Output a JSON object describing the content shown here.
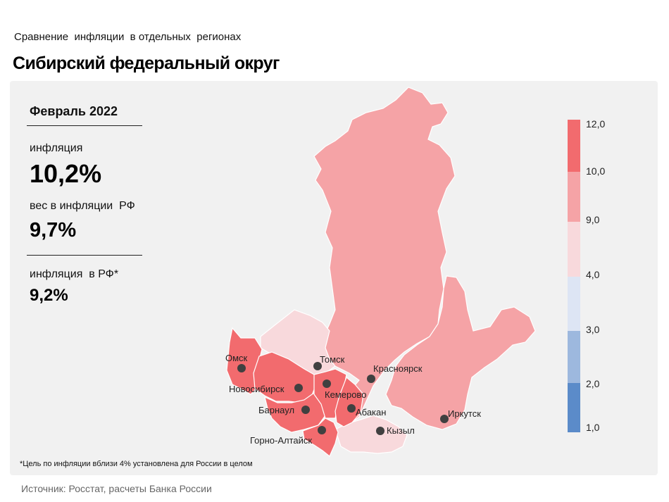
{
  "header": {
    "subtitle": "Сравнение  инфляции  в отдельных  регионах",
    "title": "Сибирский федеральный округ"
  },
  "stats": {
    "period": "Февраль 2022",
    "inflation_label": "инфляция",
    "inflation_value": "10,2%",
    "weight_label": "вес в инфляции  РФ",
    "weight_value": "9,7%",
    "rf_label": "инфляция  в РФ*",
    "rf_value": "9,2%"
  },
  "legend": {
    "labels": [
      "12,0",
      "10,0",
      "9,0",
      "4,0",
      "3,0",
      "2,0",
      "1,0"
    ],
    "colors": [
      "#f26b6e",
      "#f5a3a6",
      "#f8d9dc",
      "#dde5f4",
      "#9db8de",
      "#5b8bc9"
    ]
  },
  "map": {
    "region_colors": {
      "krasnoyarsk": "#f5a3a6",
      "irkutsk": "#f5a3a6",
      "tomsk": "#f8d9dc",
      "tyva": "#f8d9dc",
      "omsk": "#f26b6e",
      "novosibirsk": "#f26b6e",
      "altai_krai": "#f26b6e",
      "altai_rep": "#f26b6e",
      "kemerovo": "#f26b6e",
      "khakassia": "#f26b6e"
    },
    "cities": [
      {
        "name": "Омск"
      },
      {
        "name": "Томск"
      },
      {
        "name": "Новосибирск"
      },
      {
        "name": "Кемерово"
      },
      {
        "name": "Красноярск"
      },
      {
        "name": "Барнаул"
      },
      {
        "name": "Абакан"
      },
      {
        "name": "Иркутск"
      },
      {
        "name": "Кызыл"
      },
      {
        "name": "Горно-Алтайск"
      }
    ]
  },
  "footnote": "*Цель по инфляции вблизи 4% установлена для России в целом",
  "source": "Источник: Росстат, расчеты Банка России"
}
